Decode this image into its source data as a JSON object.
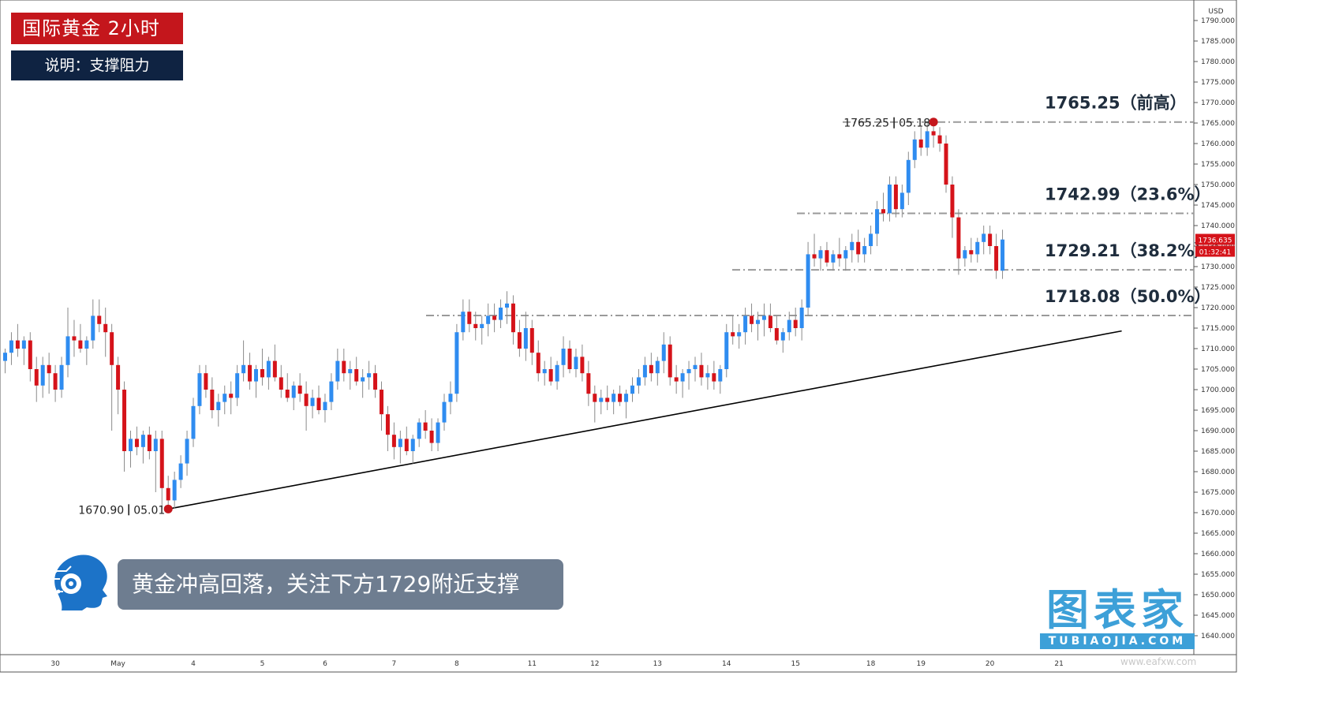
{
  "header": {
    "title": "国际黄金  2小时",
    "subtitle": "说明：支撑阻力"
  },
  "comment": "黄金冲高回落，关注下方1729附近支撑",
  "watermark": {
    "main": "图表家",
    "sub": "TUBIAOJIA.COM",
    "footer": "www.eafxw.com"
  },
  "colors": {
    "up": "#2f8cf0",
    "down": "#d5131a",
    "level": "#9a9a9a",
    "trend": "#000000",
    "label": "#1f2d3d"
  },
  "chart_data": {
    "type": "candlestick",
    "currency": "USD",
    "ylim": [
      1636,
      1796
    ],
    "y_ticks": [
      1640,
      1645,
      1650,
      1655,
      1660,
      1665,
      1670,
      1675,
      1680,
      1685,
      1690,
      1695,
      1700,
      1705,
      1710,
      1715,
      1720,
      1725,
      1730,
      1735,
      1740,
      1745,
      1750,
      1755,
      1760,
      1765,
      1770,
      1775,
      1780,
      1785,
      1790
    ],
    "x_ticks": [
      {
        "label": "30",
        "bar": 8
      },
      {
        "label": "May",
        "bar": 18
      },
      {
        "label": "4",
        "bar": 30
      },
      {
        "label": "5",
        "bar": 41
      },
      {
        "label": "6",
        "bar": 51
      },
      {
        "label": "7",
        "bar": 62
      },
      {
        "label": "8",
        "bar": 72
      },
      {
        "label": "11",
        "bar": 84
      },
      {
        "label": "12",
        "bar": 94
      },
      {
        "label": "13",
        "bar": 104
      },
      {
        "label": "14",
        "bar": 115
      },
      {
        "label": "15",
        "bar": 126
      },
      {
        "label": "18",
        "bar": 138
      },
      {
        "label": "19",
        "bar": 146
      },
      {
        "label": "20",
        "bar": 157
      },
      {
        "label": "21",
        "bar": 168
      }
    ],
    "candles": [
      [
        1707.0,
        1710.0,
        1704.0,
        1709.0
      ],
      [
        1709.0,
        1714.0,
        1706.0,
        1712.0
      ],
      [
        1712.0,
        1716.0,
        1708.0,
        1710.0
      ],
      [
        1710.0,
        1713.0,
        1706.0,
        1712.0
      ],
      [
        1712.0,
        1714.0,
        1702.0,
        1705.0
      ],
      [
        1705.0,
        1708.0,
        1697.0,
        1701.0
      ],
      [
        1701.0,
        1708.0,
        1698.0,
        1706.0
      ],
      [
        1706.0,
        1709.0,
        1699.0,
        1704.0
      ],
      [
        1704.0,
        1706.0,
        1697.0,
        1700.0
      ],
      [
        1700.0,
        1708.0,
        1698.0,
        1706.0
      ],
      [
        1706.0,
        1720.0,
        1703.0,
        1713.0
      ],
      [
        1713.0,
        1717.0,
        1708.0,
        1712.0
      ],
      [
        1712.0,
        1716.0,
        1709.0,
        1710.0
      ],
      [
        1710.0,
        1713.0,
        1706.0,
        1712.0
      ],
      [
        1712.0,
        1722.0,
        1710.0,
        1718.0
      ],
      [
        1718.0,
        1722.0,
        1714.0,
        1716.0
      ],
      [
        1716.0,
        1720.0,
        1708.0,
        1714.0
      ],
      [
        1714.0,
        1716.0,
        1690.0,
        1706.0
      ],
      [
        1706.0,
        1708.0,
        1694.0,
        1700.0
      ],
      [
        1700.0,
        1702.0,
        1680.0,
        1685.0
      ],
      [
        1685.0,
        1690.0,
        1681.0,
        1688.0
      ],
      [
        1688.0,
        1691.0,
        1684.0,
        1686.0
      ],
      [
        1686.0,
        1690.0,
        1682.0,
        1689.0
      ],
      [
        1689.0,
        1691.0,
        1683.0,
        1685.0
      ],
      [
        1685.0,
        1690.0,
        1675.0,
        1688.0
      ],
      [
        1688.0,
        1690.0,
        1671.0,
        1676.0
      ],
      [
        1676.0,
        1679.0,
        1670.9,
        1673.0
      ],
      [
        1673.0,
        1680.0,
        1671.0,
        1678.0
      ],
      [
        1678.0,
        1684.0,
        1676.0,
        1682.0
      ],
      [
        1682.0,
        1690.0,
        1679.0,
        1688.0
      ],
      [
        1688.0,
        1698.0,
        1686.0,
        1696.0
      ],
      [
        1696.0,
        1706.0,
        1694.0,
        1704.0
      ],
      [
        1704.0,
        1706.0,
        1698.0,
        1700.0
      ],
      [
        1700.0,
        1703.0,
        1693.0,
        1695.0
      ],
      [
        1695.0,
        1699.0,
        1691.0,
        1697.0
      ],
      [
        1697.0,
        1701.0,
        1694.0,
        1699.0
      ],
      [
        1699.0,
        1702.0,
        1694.0,
        1698.0
      ],
      [
        1698.0,
        1706.0,
        1696.0,
        1704.0
      ],
      [
        1704.0,
        1712.0,
        1702.0,
        1706.0
      ],
      [
        1706.0,
        1709.0,
        1700.0,
        1702.0
      ],
      [
        1702.0,
        1706.0,
        1698.0,
        1705.0
      ],
      [
        1705.0,
        1710.0,
        1701.0,
        1703.0
      ],
      [
        1703.0,
        1708.0,
        1700.0,
        1707.0
      ],
      [
        1707.0,
        1711.0,
        1702.0,
        1703.0
      ],
      [
        1703.0,
        1706.0,
        1698.0,
        1700.0
      ],
      [
        1700.0,
        1704.0,
        1697.0,
        1698.0
      ],
      [
        1698.0,
        1702.0,
        1695.0,
        1701.0
      ],
      [
        1701.0,
        1704.0,
        1697.0,
        1699.0
      ],
      [
        1699.0,
        1702.0,
        1690.0,
        1696.0
      ],
      [
        1696.0,
        1700.0,
        1693.0,
        1698.0
      ],
      [
        1698.0,
        1701.0,
        1694.0,
        1695.0
      ],
      [
        1695.0,
        1699.0,
        1692.0,
        1697.0
      ],
      [
        1697.0,
        1704.0,
        1695.0,
        1702.0
      ],
      [
        1702.0,
        1710.0,
        1700.0,
        1707.0
      ],
      [
        1707.0,
        1710.0,
        1702.0,
        1704.0
      ],
      [
        1704.0,
        1707.0,
        1700.0,
        1705.0
      ],
      [
        1705.0,
        1708.0,
        1701.0,
        1702.0
      ],
      [
        1702.0,
        1705.0,
        1698.0,
        1703.0
      ],
      [
        1703.0,
        1707.0,
        1700.0,
        1704.0
      ],
      [
        1704.0,
        1706.0,
        1698.0,
        1700.0
      ],
      [
        1700.0,
        1702.0,
        1690.0,
        1694.0
      ],
      [
        1694.0,
        1696.0,
        1685.0,
        1689.0
      ],
      [
        1689.0,
        1692.0,
        1683.0,
        1686.0
      ],
      [
        1686.0,
        1690.0,
        1682.0,
        1688.0
      ],
      [
        1688.0,
        1691.0,
        1684.0,
        1685.0
      ],
      [
        1685.0,
        1689.0,
        1682.0,
        1688.0
      ],
      [
        1688.0,
        1693.0,
        1686.0,
        1692.0
      ],
      [
        1692.0,
        1695.0,
        1688.0,
        1690.0
      ],
      [
        1690.0,
        1693.0,
        1685.0,
        1687.0
      ],
      [
        1687.0,
        1693.0,
        1685.0,
        1692.0
      ],
      [
        1692.0,
        1699.0,
        1690.0,
        1697.0
      ],
      [
        1697.0,
        1702.0,
        1694.0,
        1699.0
      ],
      [
        1699.0,
        1716.0,
        1697.0,
        1714.0
      ],
      [
        1714.0,
        1722.0,
        1712.0,
        1719.0
      ],
      [
        1719.0,
        1722.0,
        1714.0,
        1716.0
      ],
      [
        1716.0,
        1719.0,
        1712.0,
        1715.0
      ],
      [
        1715.0,
        1718.0,
        1711.0,
        1716.0
      ],
      [
        1716.0,
        1721.0,
        1713.0,
        1718.0
      ],
      [
        1718.0,
        1721.0,
        1714.0,
        1717.0
      ],
      [
        1717.0,
        1722.0,
        1715.0,
        1720.0
      ],
      [
        1720.0,
        1724.0,
        1716.0,
        1721.0
      ],
      [
        1721.0,
        1723.0,
        1711.0,
        1714.0
      ],
      [
        1714.0,
        1717.0,
        1708.0,
        1710.0
      ],
      [
        1710.0,
        1719.0,
        1707.0,
        1715.0
      ],
      [
        1715.0,
        1717.0,
        1706.0,
        1709.0
      ],
      [
        1709.0,
        1712.0,
        1702.0,
        1704.0
      ],
      [
        1704.0,
        1707.0,
        1701.0,
        1705.0
      ],
      [
        1705.0,
        1708.0,
        1701.0,
        1702.0
      ],
      [
        1702.0,
        1707.0,
        1700.0,
        1706.0
      ],
      [
        1706.0,
        1713.0,
        1703.0,
        1710.0
      ],
      [
        1710.0,
        1712.0,
        1704.0,
        1705.0
      ],
      [
        1705.0,
        1710.0,
        1703.0,
        1708.0
      ],
      [
        1708.0,
        1711.0,
        1702.0,
        1704.0
      ],
      [
        1704.0,
        1707.0,
        1696.0,
        1699.0
      ],
      [
        1699.0,
        1701.0,
        1692.0,
        1697.0
      ],
      [
        1697.0,
        1700.0,
        1694.0,
        1698.0
      ],
      [
        1698.0,
        1701.0,
        1695.0,
        1697.0
      ],
      [
        1697.0,
        1700.0,
        1694.0,
        1699.0
      ],
      [
        1699.0,
        1701.0,
        1696.0,
        1697.0
      ],
      [
        1697.0,
        1700.0,
        1693.0,
        1699.0
      ],
      [
        1699.0,
        1703.0,
        1697.0,
        1701.0
      ],
      [
        1701.0,
        1705.0,
        1699.0,
        1703.0
      ],
      [
        1703.0,
        1708.0,
        1701.0,
        1706.0
      ],
      [
        1706.0,
        1709.0,
        1702.0,
        1704.0
      ],
      [
        1704.0,
        1708.0,
        1701.0,
        1707.0
      ],
      [
        1707.0,
        1714.0,
        1704.0,
        1711.0
      ],
      [
        1711.0,
        1713.0,
        1701.0,
        1703.0
      ],
      [
        1703.0,
        1706.0,
        1699.0,
        1702.0
      ],
      [
        1702.0,
        1705.0,
        1698.0,
        1704.0
      ],
      [
        1704.0,
        1707.0,
        1700.0,
        1705.0
      ],
      [
        1705.0,
        1708.0,
        1702.0,
        1706.0
      ],
      [
        1706.0,
        1709.0,
        1701.0,
        1703.0
      ],
      [
        1703.0,
        1706.0,
        1700.0,
        1704.0
      ],
      [
        1704.0,
        1707.0,
        1700.0,
        1702.0
      ],
      [
        1702.0,
        1706.0,
        1699.0,
        1705.0
      ],
      [
        1705.0,
        1716.0,
        1703.0,
        1714.0
      ],
      [
        1714.0,
        1718.0,
        1711.0,
        1713.0
      ],
      [
        1713.0,
        1716.0,
        1710.0,
        1714.0
      ],
      [
        1714.0,
        1720.0,
        1711.0,
        1718.0
      ],
      [
        1718.0,
        1721.0,
        1714.0,
        1716.0
      ],
      [
        1716.0,
        1719.0,
        1712.0,
        1717.0
      ],
      [
        1717.0,
        1721.0,
        1713.0,
        1718.0
      ],
      [
        1718.0,
        1721.0,
        1714.0,
        1715.0
      ],
      [
        1715.0,
        1718.0,
        1711.0,
        1712.0
      ],
      [
        1712.0,
        1715.0,
        1709.0,
        1714.0
      ],
      [
        1714.0,
        1719.0,
        1712.0,
        1717.0
      ],
      [
        1717.0,
        1720.0,
        1713.0,
        1715.0
      ],
      [
        1715.0,
        1722.0,
        1712.0,
        1720.0
      ],
      [
        1720.0,
        1736.0,
        1718.0,
        1733.0
      ],
      [
        1733.0,
        1738.0,
        1730.0,
        1732.0
      ],
      [
        1732.0,
        1735.0,
        1729.0,
        1734.0
      ],
      [
        1734.0,
        1736.0,
        1730.0,
        1731.0
      ],
      [
        1731.0,
        1734.0,
        1729.0,
        1733.0
      ],
      [
        1733.0,
        1737.0,
        1730.0,
        1732.0
      ],
      [
        1732.0,
        1735.0,
        1729.0,
        1734.0
      ],
      [
        1734.0,
        1738.0,
        1731.0,
        1736.0
      ],
      [
        1736.0,
        1739.0,
        1731.0,
        1733.0
      ],
      [
        1733.0,
        1737.0,
        1731.0,
        1735.0
      ],
      [
        1735.0,
        1740.0,
        1733.0,
        1738.0
      ],
      [
        1738.0,
        1746.0,
        1735.0,
        1744.0
      ],
      [
        1744.0,
        1748.0,
        1741.0,
        1743.0
      ],
      [
        1743.0,
        1752.0,
        1741.0,
        1750.0
      ],
      [
        1750.0,
        1752.0,
        1742.0,
        1744.0
      ],
      [
        1744.0,
        1750.0,
        1742.0,
        1748.0
      ],
      [
        1748.0,
        1758.0,
        1745.0,
        1756.0
      ],
      [
        1756.0,
        1763.0,
        1754.0,
        1761.0
      ],
      [
        1761.0,
        1764.0,
        1757.0,
        1759.0
      ],
      [
        1759.0,
        1765.25,
        1757.0,
        1763.0
      ],
      [
        1763.0,
        1765.0,
        1759.0,
        1762.0
      ],
      [
        1762.0,
        1764.0,
        1758.0,
        1760.0
      ],
      [
        1760.0,
        1762.0,
        1748.0,
        1750.0
      ],
      [
        1750.0,
        1752.0,
        1737.0,
        1742.0
      ],
      [
        1742.0,
        1744.0,
        1728.0,
        1732.0
      ],
      [
        1732.0,
        1735.0,
        1730.0,
        1734.0
      ],
      [
        1734.0,
        1737.0,
        1731.0,
        1733.0
      ],
      [
        1733.0,
        1737.0,
        1731.0,
        1736.0
      ],
      [
        1736.0,
        1740.0,
        1733.0,
        1738.0
      ],
      [
        1738.0,
        1740.0,
        1733.0,
        1735.0
      ],
      [
        1735.0,
        1738.0,
        1727.0,
        1729.0
      ],
      [
        1729.0,
        1739.0,
        1727.0,
        1736.6
      ]
    ],
    "levels": [
      {
        "value": 1765.25,
        "label": "1765.25（前高）"
      },
      {
        "value": 1742.99,
        "label": "1742.99（23.6%）"
      },
      {
        "value": 1729.21,
        "label": "1729.21（38.2%）"
      },
      {
        "value": 1718.08,
        "label": "1718.08（50.0%）"
      }
    ],
    "trendline": {
      "start": {
        "bar": 26,
        "price": 1670.9
      },
      "end": {
        "bar": 178,
        "price": 1714.3
      }
    },
    "annotations": [
      {
        "bar": 26,
        "price": 1670.9,
        "value": "1670.90",
        "date": "05.01"
      },
      {
        "bar": 148,
        "price": 1765.25,
        "value": "1765.25",
        "date": "05.18"
      }
    ],
    "last_price": "1736.635",
    "countdown": "01:32:41"
  }
}
